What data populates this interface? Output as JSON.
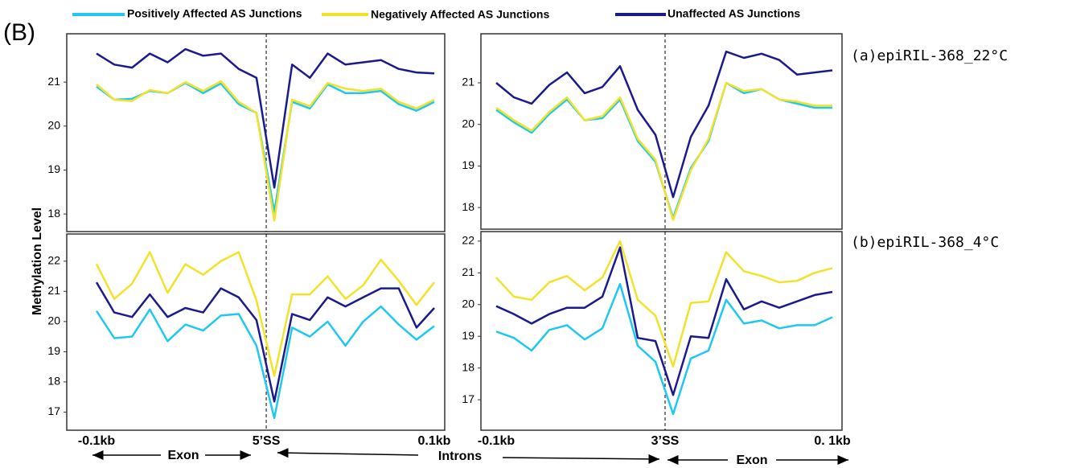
{
  "figure_label": "(B)",
  "ylabel": "Methylation Level",
  "bottom_labels": [
    "Exon",
    "Introns",
    "Exon"
  ],
  "chart_data": [
    {
      "type": "line",
      "ylim": [
        17.6,
        22.1
      ],
      "yticks": [
        18,
        19,
        20,
        21
      ],
      "series": [
        {
          "name": "Positively Affected AS Junctions",
          "color": "#1fc8f0",
          "values": [
            20.9,
            20.6,
            20.62,
            20.8,
            20.75,
            20.98,
            20.75,
            20.97,
            20.5,
            20.3,
            18.05,
            20.55,
            20.4,
            20.95,
            20.75,
            20.75,
            20.8,
            20.5,
            20.35,
            20.55
          ]
        },
        {
          "name": "Negatively Affected AS Junctions",
          "color": "#f2e22a",
          "values": [
            20.95,
            20.6,
            20.57,
            20.82,
            20.75,
            21.0,
            20.8,
            21.02,
            20.55,
            20.3,
            17.85,
            20.6,
            20.45,
            20.98,
            20.85,
            20.8,
            20.85,
            20.55,
            20.4,
            20.6
          ]
        },
        {
          "name": "Unaffected AS Junctions",
          "color": "#1b1a8c",
          "values": [
            21.65,
            21.4,
            21.33,
            21.65,
            21.45,
            21.75,
            21.6,
            21.65,
            21.3,
            21.1,
            18.6,
            21.4,
            21.1,
            21.65,
            21.4,
            21.45,
            21.5,
            21.3,
            21.22,
            21.2
          ]
        }
      ]
    },
    {
      "type": "line",
      "title": "(a)epiRIL-368_22°C",
      "ylim": [
        17.48,
        22.18
      ],
      "yticks": [
        18,
        19,
        20,
        21
      ],
      "series": [
        {
          "name": "Positively Affected AS Junctions",
          "color": "#1fc8f0",
          "values": [
            20.35,
            20.05,
            19.8,
            20.25,
            20.6,
            20.1,
            20.15,
            20.6,
            19.6,
            19.1,
            17.75,
            18.95,
            19.6,
            21.0,
            20.75,
            20.85,
            20.6,
            20.5,
            20.4,
            20.4
          ]
        },
        {
          "name": "Negatively Affected AS Junctions",
          "color": "#f2e22a",
          "values": [
            20.4,
            20.1,
            19.85,
            20.3,
            20.65,
            20.1,
            20.2,
            20.65,
            19.65,
            19.15,
            17.7,
            18.9,
            19.65,
            21.0,
            20.8,
            20.85,
            20.6,
            20.55,
            20.45,
            20.45
          ]
        },
        {
          "name": "Unaffected AS Junctions",
          "color": "#1b1a8c",
          "values": [
            21.0,
            20.65,
            20.5,
            20.95,
            21.25,
            20.75,
            20.9,
            21.4,
            20.35,
            19.75,
            18.25,
            19.7,
            20.45,
            21.75,
            21.6,
            21.7,
            21.55,
            21.2,
            21.25,
            21.3
          ]
        }
      ]
    },
    {
      "type": "line",
      "ylim": [
        16.4,
        22.9
      ],
      "yticks": [
        17,
        18,
        19,
        20,
        21,
        22
      ],
      "categories": [
        "-0.1kb",
        null,
        null,
        null,
        null,
        null,
        null,
        null,
        null,
        null,
        "5’SS",
        null,
        null,
        null,
        null,
        null,
        null,
        null,
        null,
        "0.1kb"
      ],
      "series": [
        {
          "name": "Positively Affected AS Junctions",
          "color": "#1fc8f0",
          "values": [
            20.35,
            19.45,
            19.5,
            20.4,
            19.35,
            19.9,
            19.7,
            20.2,
            20.25,
            19.2,
            16.8,
            19.8,
            19.5,
            20.0,
            19.2,
            20.0,
            20.5,
            19.9,
            19.4,
            19.85
          ]
        },
        {
          "name": "Negatively Affected AS Junctions",
          "color": "#f2e22a",
          "values": [
            21.9,
            20.75,
            21.25,
            22.3,
            20.95,
            21.9,
            21.55,
            22.0,
            22.3,
            20.7,
            18.2,
            20.9,
            20.9,
            21.5,
            20.75,
            21.2,
            22.05,
            21.35,
            20.55,
            21.3
          ]
        },
        {
          "name": "Unaffected AS Junctions",
          "color": "#1b1a8c",
          "values": [
            21.3,
            20.3,
            20.15,
            20.9,
            20.15,
            20.45,
            20.3,
            21.1,
            20.8,
            20.05,
            17.35,
            20.25,
            20.05,
            20.8,
            20.5,
            20.8,
            21.1,
            21.1,
            19.8,
            20.45
          ]
        }
      ]
    },
    {
      "type": "line",
      "title": "(b)epiRIL-368_4°C",
      "ylim": [
        16.04,
        22.3
      ],
      "yticks": [
        17,
        18,
        19,
        20,
        21,
        22
      ],
      "categories": [
        "-0.1kb",
        null,
        null,
        null,
        null,
        null,
        null,
        null,
        null,
        null,
        "3’SS",
        null,
        null,
        null,
        null,
        null,
        null,
        null,
        null,
        "0. 1kb"
      ],
      "series": [
        {
          "name": "Positively Affected AS Junctions",
          "color": "#1fc8f0",
          "values": [
            19.15,
            18.95,
            18.55,
            19.2,
            19.35,
            18.9,
            19.25,
            20.65,
            18.7,
            18.2,
            16.55,
            18.3,
            18.55,
            20.15,
            19.4,
            19.5,
            19.25,
            19.35,
            19.35,
            19.6
          ]
        },
        {
          "name": "Negatively Affected AS Junctions",
          "color": "#f2e22a",
          "values": [
            20.85,
            20.25,
            20.15,
            20.7,
            20.9,
            20.45,
            20.85,
            22.0,
            20.15,
            19.65,
            18.05,
            20.05,
            20.1,
            21.65,
            21.05,
            20.9,
            20.7,
            20.75,
            21.0,
            21.15
          ]
        },
        {
          "name": "Unaffected AS Junctions",
          "color": "#1b1a8c",
          "values": [
            19.95,
            19.7,
            19.4,
            19.7,
            19.9,
            19.9,
            20.25,
            21.8,
            18.95,
            18.85,
            17.15,
            19.0,
            18.95,
            20.8,
            19.85,
            20.1,
            19.9,
            20.1,
            20.3,
            20.4
          ]
        }
      ]
    }
  ]
}
